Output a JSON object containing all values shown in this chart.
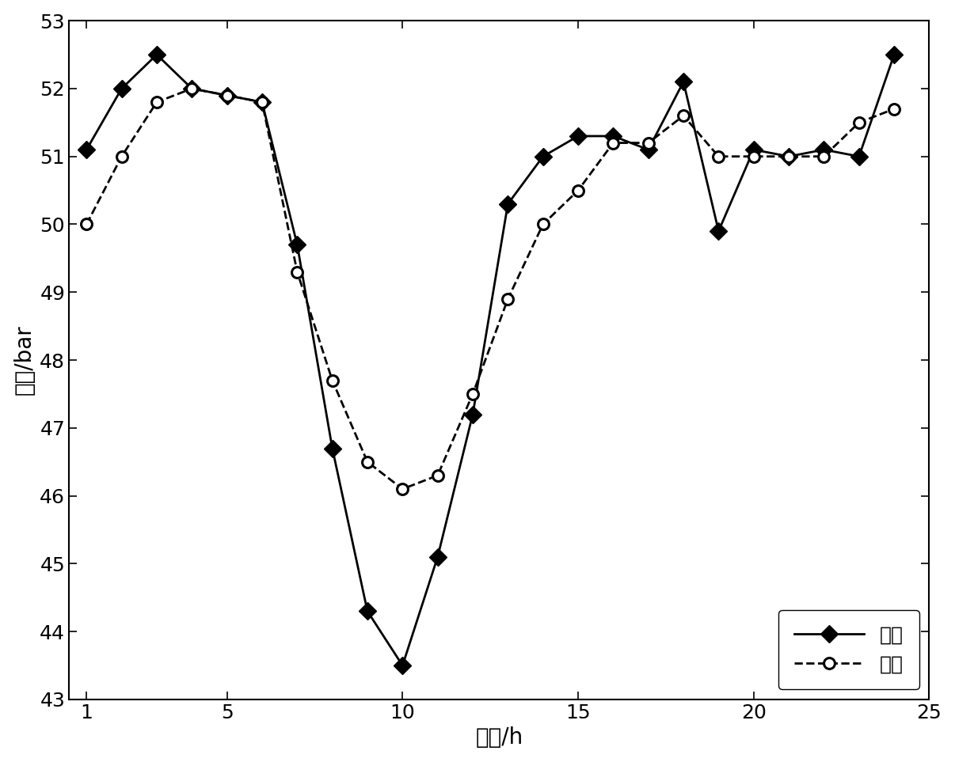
{
  "steady_x": [
    1,
    2,
    3,
    4,
    5,
    6,
    7,
    8,
    9,
    10,
    11,
    12,
    13,
    14,
    15,
    16,
    17,
    18,
    19,
    20,
    21,
    22,
    23,
    24
  ],
  "steady_y": [
    51.1,
    52.0,
    52.5,
    52.0,
    51.9,
    51.8,
    49.7,
    46.7,
    44.3,
    43.5,
    45.1,
    47.2,
    50.3,
    51.0,
    51.3,
    51.3,
    51.1,
    52.1,
    49.9,
    51.1,
    51.0,
    51.1,
    51.0,
    52.5
  ],
  "transient_x": [
    1,
    2,
    3,
    4,
    5,
    6,
    7,
    8,
    9,
    10,
    11,
    12,
    13,
    14,
    15,
    16,
    17,
    18,
    19,
    20,
    21,
    22,
    23,
    24
  ],
  "transient_y": [
    50.0,
    51.0,
    51.8,
    52.0,
    51.9,
    51.8,
    49.3,
    47.7,
    46.5,
    46.1,
    46.3,
    47.5,
    48.9,
    50.0,
    50.5,
    51.2,
    51.2,
    51.6,
    51.0,
    51.0,
    51.0,
    51.0,
    51.5,
    51.7
  ],
  "xlabel": "时刻/h",
  "ylabel": "压力/bar",
  "legend_steady": "稳态",
  "legend_transient": "暂态",
  "xlim": [
    0.5,
    25
  ],
  "ylim": [
    43,
    53
  ],
  "xticks": [
    5,
    10,
    15,
    20,
    25
  ],
  "xtick_labels": [
    "5",
    "10",
    "15",
    "20",
    "25"
  ],
  "x_extra_tick": 1,
  "yticks": [
    43,
    44,
    45,
    46,
    47,
    48,
    49,
    50,
    51,
    52,
    53
  ],
  "line_color": "#000000",
  "background_color": "#ffffff",
  "linewidth": 2.0,
  "markersize_diamond": 11,
  "markersize_circle": 10
}
